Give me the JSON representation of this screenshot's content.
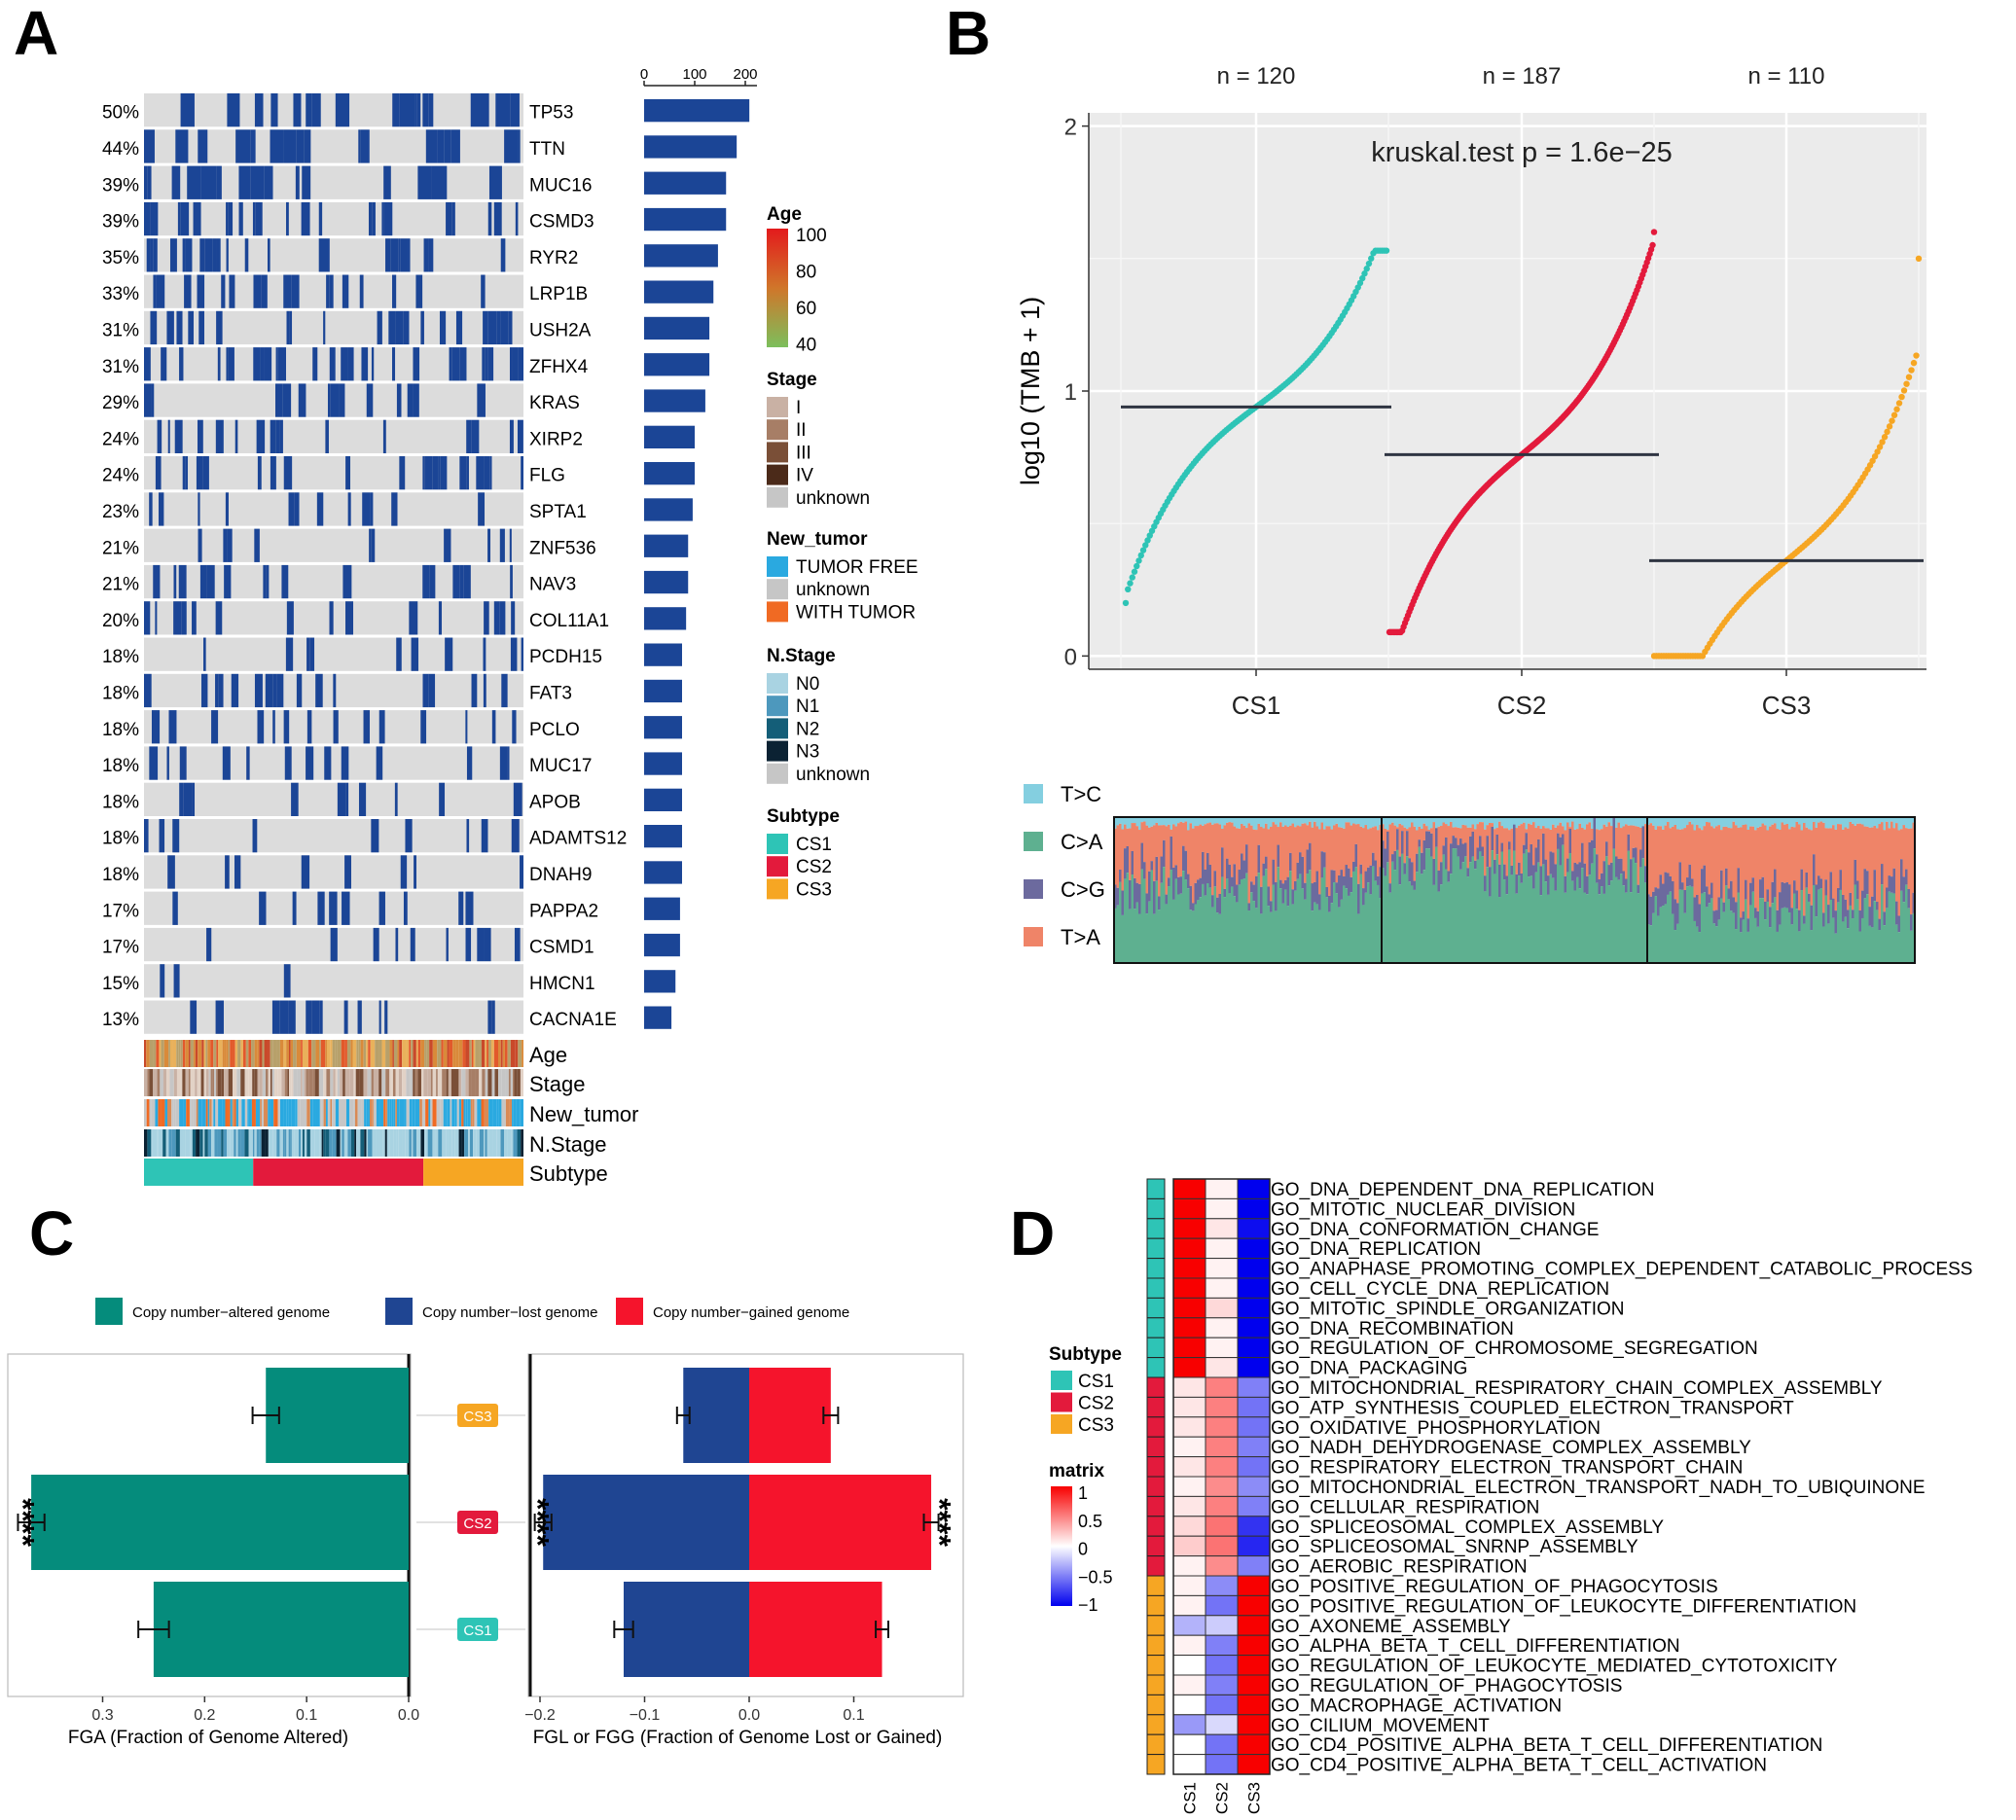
{
  "panel_labels": [
    "A",
    "B",
    "C",
    "D"
  ],
  "colors": {
    "mut": "#1b4596",
    "wt": "#dcdcdc",
    "cs1": "#2ec4b6",
    "cs2": "#e31a3c",
    "cs3": "#f6a623",
    "cna_altered": "#058c7c",
    "cna_lost": "#1f4592",
    "cna_gained": "#f5142c",
    "plot_bg": "#ebebeb"
  },
  "chart_data": [
    {
      "panel": "A",
      "type": "oncoplot",
      "genes": [
        "TP53",
        "TTN",
        "MUC16",
        "CSMD3",
        "RYR2",
        "LRP1B",
        "USH2A",
        "ZFHX4",
        "KRAS",
        "XIRP2",
        "FLG",
        "SPTA1",
        "ZNF536",
        "NAV3",
        "COL11A1",
        "PCDH15",
        "FAT3",
        "PCLO",
        "MUC17",
        "APOB",
        "ADAMTS12",
        "DNAH9",
        "PAPPA2",
        "CSMD1",
        "HMCN1",
        "CACNA1E"
      ],
      "percents": [
        "50%",
        "44%",
        "39%",
        "39%",
        "35%",
        "33%",
        "31%",
        "31%",
        "29%",
        "24%",
        "24%",
        "23%",
        "21%",
        "21%",
        "20%",
        "18%",
        "18%",
        "18%",
        "18%",
        "18%",
        "18%",
        "18%",
        "17%",
        "17%",
        "15%",
        "13%"
      ],
      "counts": [
        208,
        183,
        162,
        162,
        146,
        137,
        129,
        129,
        121,
        100,
        100,
        96,
        87,
        87,
        83,
        75,
        75,
        75,
        75,
        75,
        75,
        75,
        71,
        71,
        62,
        54
      ],
      "count_axis_ticks": [
        "0",
        "100",
        "200"
      ],
      "count_axis_max": 200,
      "annotation_tracks": [
        "Age",
        "Stage",
        "New_tumor",
        "N.Stage",
        "Subtype"
      ],
      "legends": [
        {
          "title": "Age",
          "type": "gradient",
          "ticks": [
            "100",
            "80",
            "60",
            "40"
          ],
          "stops": [
            "#e31a1c",
            "#d0762a",
            "#7cbf5c"
          ]
        },
        {
          "title": "Stage",
          "items": [
            {
              "label": "I",
              "color": "#c9b1a4"
            },
            {
              "label": "II",
              "color": "#a77e66"
            },
            {
              "label": "III",
              "color": "#7a4f37"
            },
            {
              "label": "IV",
              "color": "#4b2a19"
            },
            {
              "label": "unknown",
              "color": "#c6c6c6"
            }
          ]
        },
        {
          "title": "New_tumor",
          "items": [
            {
              "label": "TUMOR FREE",
              "color": "#2aa9e0"
            },
            {
              "label": "unknown",
              "color": "#c6c6c6"
            },
            {
              "label": "WITH TUMOR",
              "color": "#f06a23"
            }
          ]
        },
        {
          "title": "N.Stage",
          "items": [
            {
              "label": "N0",
              "color": "#a9d3e2"
            },
            {
              "label": "N1",
              "color": "#4d98bd"
            },
            {
              "label": "N2",
              "color": "#145e78"
            },
            {
              "label": "N3",
              "color": "#0b2233"
            },
            {
              "label": "unknown",
              "color": "#c6c6c6"
            }
          ]
        },
        {
          "title": "Subtype",
          "items": [
            {
              "label": "CS1",
              "color": "#2ec4b6"
            },
            {
              "label": "CS2",
              "color": "#e31a3c"
            },
            {
              "label": "CS3",
              "color": "#f6a623"
            }
          ]
        }
      ]
    },
    {
      "panel": "B",
      "type": "scatter",
      "title": "kruskal.test p = 1.6e−25",
      "ylabel": "log10 (TMB + 1)",
      "ylim": [
        -0.05,
        2.05
      ],
      "yticks": [
        "0",
        "1",
        "2"
      ],
      "groups": [
        {
          "name": "CS1",
          "n_label": "n = 120",
          "n": 120,
          "median": 0.94,
          "min": 0.2,
          "max": 1.53,
          "color": "#2ec4b6"
        },
        {
          "name": "CS2",
          "n_label": "n = 187",
          "n": 187,
          "median": 0.76,
          "min": 0.09,
          "max": 1.6,
          "color": "#e31a3c"
        },
        {
          "name": "CS3",
          "n_label": "n = 110",
          "n": 110,
          "median": 0.36,
          "min": 0.0,
          "max": 1.5,
          "color": "#f6a623"
        }
      ],
      "mutation_spectrum": {
        "categories": [
          "T>C",
          "C>A",
          "C>G",
          "T>A"
        ],
        "colors": [
          "#84cfe0",
          "#5eb090",
          "#6c6a9e",
          "#ef8468"
        ]
      }
    },
    {
      "panel": "C",
      "type": "bar",
      "legend": [
        "Copy number−altered genome",
        "Copy number−lost genome",
        "Copy number−gained genome"
      ],
      "categories": [
        "CS3",
        "CS2",
        "CS1"
      ],
      "left": {
        "xlabel": "FGA (Fraction of Genome Altered)",
        "xticks": [
          "0.3",
          "0.2",
          "0.1",
          "0.0"
        ],
        "values": [
          0.14,
          0.37,
          0.25
        ],
        "errors": [
          0.013,
          0.013,
          0.015
        ],
        "significance": [
          "",
          "****",
          ""
        ]
      },
      "right": {
        "xlabel": "FGL or FGG (Fraction of Genome Lost or Gained)",
        "xticks": [
          "−0.2",
          "−0.1",
          "0.0",
          "0.1"
        ],
        "lost": [
          -0.063,
          -0.197,
          -0.12
        ],
        "lost_err": [
          0.006,
          0.008,
          0.009
        ],
        "gained": [
          0.078,
          0.174,
          0.127
        ],
        "gained_err": [
          0.007,
          0.007,
          0.006
        ],
        "significance_lost": [
          "",
          "****",
          ""
        ],
        "significance_gained": [
          "",
          "****",
          ""
        ]
      }
    },
    {
      "panel": "D",
      "type": "heatmap",
      "columns": [
        "CS1",
        "CS2",
        "CS3"
      ],
      "legend_title": "matrix",
      "legend_ticks": [
        "1",
        "0.5",
        "0",
        "−0.5",
        "−1"
      ],
      "subtype_legend_title": "Subtype",
      "subtype_legend": [
        "CS1",
        "CS2",
        "CS3"
      ],
      "rows": [
        {
          "term": "GO_DNA_DEPENDENT_DNA_REPLICATION",
          "group": "CS1",
          "values": [
            1.0,
            0.05,
            -1.0
          ]
        },
        {
          "term": "GO_MITOTIC_NUCLEAR_DIVISION",
          "group": "CS1",
          "values": [
            1.0,
            0.05,
            -1.0
          ]
        },
        {
          "term": "GO_DNA_CONFORMATION_CHANGE",
          "group": "CS1",
          "values": [
            1.0,
            0.1,
            -0.95
          ]
        },
        {
          "term": "GO_DNA_REPLICATION",
          "group": "CS1",
          "values": [
            1.0,
            0.05,
            -1.0
          ]
        },
        {
          "term": "GO_ANAPHASE_PROMOTING_COMPLEX_DEPENDENT_CATABOLIC_PROCESS",
          "group": "CS1",
          "values": [
            1.0,
            0.05,
            -1.0
          ]
        },
        {
          "term": "GO_CELL_CYCLE_DNA_REPLICATION",
          "group": "CS1",
          "values": [
            1.0,
            0.05,
            -1.0
          ]
        },
        {
          "term": "GO_MITOTIC_SPINDLE_ORGANIZATION",
          "group": "CS1",
          "values": [
            1.0,
            0.15,
            -1.0
          ]
        },
        {
          "term": "GO_DNA_RECOMBINATION",
          "group": "CS1",
          "values": [
            1.0,
            0.05,
            -1.0
          ]
        },
        {
          "term": "GO_REGULATION_OF_CHROMOSOME_SEGREGATION",
          "group": "CS1",
          "values": [
            1.0,
            0.05,
            -1.0
          ]
        },
        {
          "term": "GO_DNA_PACKAGING",
          "group": "CS1",
          "values": [
            1.0,
            0.1,
            -1.0
          ]
        },
        {
          "term": "GO_MITOCHONDRIAL_RESPIRATORY_CHAIN_COMPLEX_ASSEMBLY",
          "group": "CS2",
          "values": [
            0.1,
            0.5,
            -0.5
          ]
        },
        {
          "term": "GO_ATP_SYNTHESIS_COUPLED_ELECTRON_TRANSPORT",
          "group": "CS2",
          "values": [
            0.1,
            0.5,
            -0.55
          ]
        },
        {
          "term": "GO_OXIDATIVE_PHOSPHORYLATION",
          "group": "CS2",
          "values": [
            0.1,
            0.5,
            -0.55
          ]
        },
        {
          "term": "GO_NADH_DEHYDROGENASE_COMPLEX_ASSEMBLY",
          "group": "CS2",
          "values": [
            0.05,
            0.5,
            -0.5
          ]
        },
        {
          "term": "GO_RESPIRATORY_ELECTRON_TRANSPORT_CHAIN",
          "group": "CS2",
          "values": [
            0.1,
            0.5,
            -0.55
          ]
        },
        {
          "term": "GO_MITOCHONDRIAL_ELECTRON_TRANSPORT_NADH_TO_UBIQUINONE",
          "group": "CS2",
          "values": [
            0.05,
            0.45,
            -0.45
          ]
        },
        {
          "term": "GO_CELLULAR_RESPIRATION",
          "group": "CS2",
          "values": [
            0.1,
            0.5,
            -0.5
          ]
        },
        {
          "term": "GO_SPLICEOSOMAL_COMPLEX_ASSEMBLY",
          "group": "CS2",
          "values": [
            0.15,
            0.55,
            -0.8
          ]
        },
        {
          "term": "GO_SPLICEOSOMAL_SNRNP_ASSEMBLY",
          "group": "CS2",
          "values": [
            0.2,
            0.55,
            -0.85
          ]
        },
        {
          "term": "GO_AEROBIC_RESPIRATION",
          "group": "CS2",
          "values": [
            0.05,
            0.45,
            -0.5
          ]
        },
        {
          "term": "GO_POSITIVE_REGULATION_OF_PHAGOCYTOSIS",
          "group": "CS3",
          "values": [
            0.05,
            -0.45,
            1.0
          ]
        },
        {
          "term": "GO_POSITIVE_REGULATION_OF_LEUKOCYTE_DIFFERENTIATION",
          "group": "CS3",
          "values": [
            0.05,
            -0.55,
            1.0
          ]
        },
        {
          "term": "GO_AXONEME_ASSEMBLY",
          "group": "CS3",
          "values": [
            -0.3,
            -0.2,
            1.0
          ]
        },
        {
          "term": "GO_ALPHA_BETA_T_CELL_DIFFERENTIATION",
          "group": "CS3",
          "values": [
            0.05,
            -0.5,
            1.0
          ]
        },
        {
          "term": "GO_REGULATION_OF_LEUKOCYTE_MEDIATED_CYTOTOXICITY",
          "group": "CS3",
          "values": [
            0.0,
            -0.55,
            1.0
          ]
        },
        {
          "term": "GO_REGULATION_OF_PHAGOCYTOSIS",
          "group": "CS3",
          "values": [
            0.05,
            -0.5,
            1.0
          ]
        },
        {
          "term": "GO_MACROPHAGE_ACTIVATION",
          "group": "CS3",
          "values": [
            0.0,
            -0.55,
            1.0
          ]
        },
        {
          "term": "GO_CILIUM_MOVEMENT",
          "group": "CS3",
          "values": [
            -0.4,
            -0.15,
            1.0
          ]
        },
        {
          "term": "GO_CD4_POSITIVE_ALPHA_BETA_T_CELL_DIFFERENTIATION",
          "group": "CS3",
          "values": [
            0.0,
            -0.55,
            1.0
          ]
        },
        {
          "term": "GO_CD4_POSITIVE_ALPHA_BETA_T_CELL_ACTIVATION",
          "group": "CS3",
          "values": [
            0.0,
            -0.55,
            1.0
          ]
        }
      ]
    }
  ]
}
